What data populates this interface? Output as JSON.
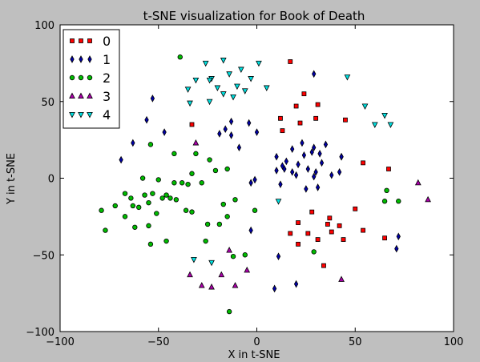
{
  "chart_data": {
    "type": "scatter",
    "title": "t-SNE visualization for Book of Death",
    "xlabel": "X in t-SNE",
    "ylabel": "Y in t-SNE",
    "xlim": [
      -100,
      100
    ],
    "ylim": [
      -100,
      100
    ],
    "xticks": [
      -100,
      -50,
      0,
      50,
      100
    ],
    "yticks": [
      -100,
      -50,
      0,
      50,
      100
    ],
    "xtick_labels": [
      "−100",
      "−50",
      "0",
      "50",
      "100"
    ],
    "ytick_labels": [
      "−100",
      "−50",
      "0",
      "50",
      "100"
    ],
    "legend_position": "top-left",
    "grid": false,
    "series": [
      {
        "name": "0",
        "marker": "square",
        "color": "#ff0000",
        "x": [
          -33,
          17,
          12,
          20,
          24,
          31,
          13,
          22,
          30,
          45,
          54,
          67,
          50,
          37,
          28,
          21,
          36,
          42,
          54,
          65,
          17,
          21,
          26,
          31,
          38,
          44,
          34
        ],
        "y": [
          35,
          76,
          39,
          47,
          55,
          48,
          31,
          36,
          39,
          38,
          10,
          6,
          -20,
          -26,
          -22,
          -29,
          -30,
          -31,
          -34,
          -39,
          -36,
          -43,
          -36,
          -40,
          -35,
          -40,
          -57
        ]
      },
      {
        "name": "1",
        "marker": "thin_diamond",
        "color": "#0000aa",
        "x": [
          -53,
          -56,
          -47,
          -63,
          -69,
          -16,
          -13,
          -19,
          -9,
          -13,
          -4,
          0,
          -1,
          -3,
          10,
          13,
          12,
          15,
          18,
          23,
          28,
          29,
          32,
          35,
          38,
          43,
          10,
          14,
          18,
          21,
          26,
          30,
          33,
          42,
          43,
          25,
          20,
          29,
          31,
          24,
          72,
          71,
          11,
          9,
          20,
          -3,
          29
        ],
        "y": [
          52,
          38,
          30,
          23,
          12,
          32,
          37,
          29,
          20,
          28,
          36,
          30,
          -1,
          -3,
          14,
          8,
          -4,
          11,
          19,
          23,
          17,
          20,
          16,
          22,
          2,
          14,
          5,
          6,
          4,
          9,
          6,
          4,
          10,
          4,
          14,
          -7,
          2,
          1,
          -6,
          15,
          -38,
          -46,
          -51,
          -72,
          -69,
          -34,
          68
        ]
      },
      {
        "name": "2",
        "marker": "circle",
        "color": "#00bb00",
        "x": [
          -39,
          -54,
          -42,
          -31,
          -24,
          -21,
          -33,
          -15,
          -38,
          -28,
          -35,
          -42,
          -50,
          -58,
          -53,
          -57,
          -64,
          -67,
          -72,
          -79,
          -77,
          -55,
          -60,
          -63,
          -67,
          -62,
          -55,
          -51,
          -46,
          -48,
          -44,
          -41,
          -36,
          -33,
          -25,
          -17,
          -15,
          -11,
          -1,
          -19,
          -26,
          -46,
          -54,
          -6,
          29,
          66,
          72,
          65,
          -12,
          -14
        ],
        "y": [
          79,
          22,
          16,
          16,
          12,
          5,
          3,
          6,
          -3,
          -3,
          -4,
          -3,
          -1,
          0,
          -10,
          -11,
          -13,
          -10,
          -18,
          -21,
          -34,
          -16,
          -19,
          -18,
          -25,
          -32,
          -31,
          -23,
          -11,
          -13,
          -13,
          -14,
          -21,
          -22,
          -30,
          -17,
          -25,
          -14,
          -21,
          -30,
          -41,
          -41,
          -43,
          -50,
          -48,
          -8,
          -15,
          -15,
          -51,
          -87
        ]
      },
      {
        "name": "3",
        "marker": "triangle-up",
        "color": "#aa00aa",
        "x": [
          -31,
          82,
          87,
          -34,
          -28,
          -23,
          -18,
          -14,
          -11,
          -5,
          43
        ],
        "y": [
          23,
          -3,
          -14,
          -63,
          -70,
          -71,
          -63,
          -47,
          -70,
          -60,
          -66
        ]
      },
      {
        "name": "4",
        "marker": "triangle-down",
        "color": "#00e0e0",
        "x": [
          -26,
          -17,
          -31,
          -20,
          -23,
          -14,
          -8,
          -3,
          1,
          -10,
          -6,
          -35,
          -12,
          5,
          -24,
          -34,
          -17,
          -24,
          46,
          55,
          60,
          65,
          68,
          -32,
          -23,
          11
        ],
        "y": [
          75,
          77,
          64,
          59,
          65,
          68,
          71,
          65,
          75,
          60,
          57,
          58,
          53,
          59,
          50,
          49,
          55,
          64,
          66,
          47,
          35,
          41,
          35,
          -53,
          -55,
          -15
        ]
      }
    ]
  }
}
